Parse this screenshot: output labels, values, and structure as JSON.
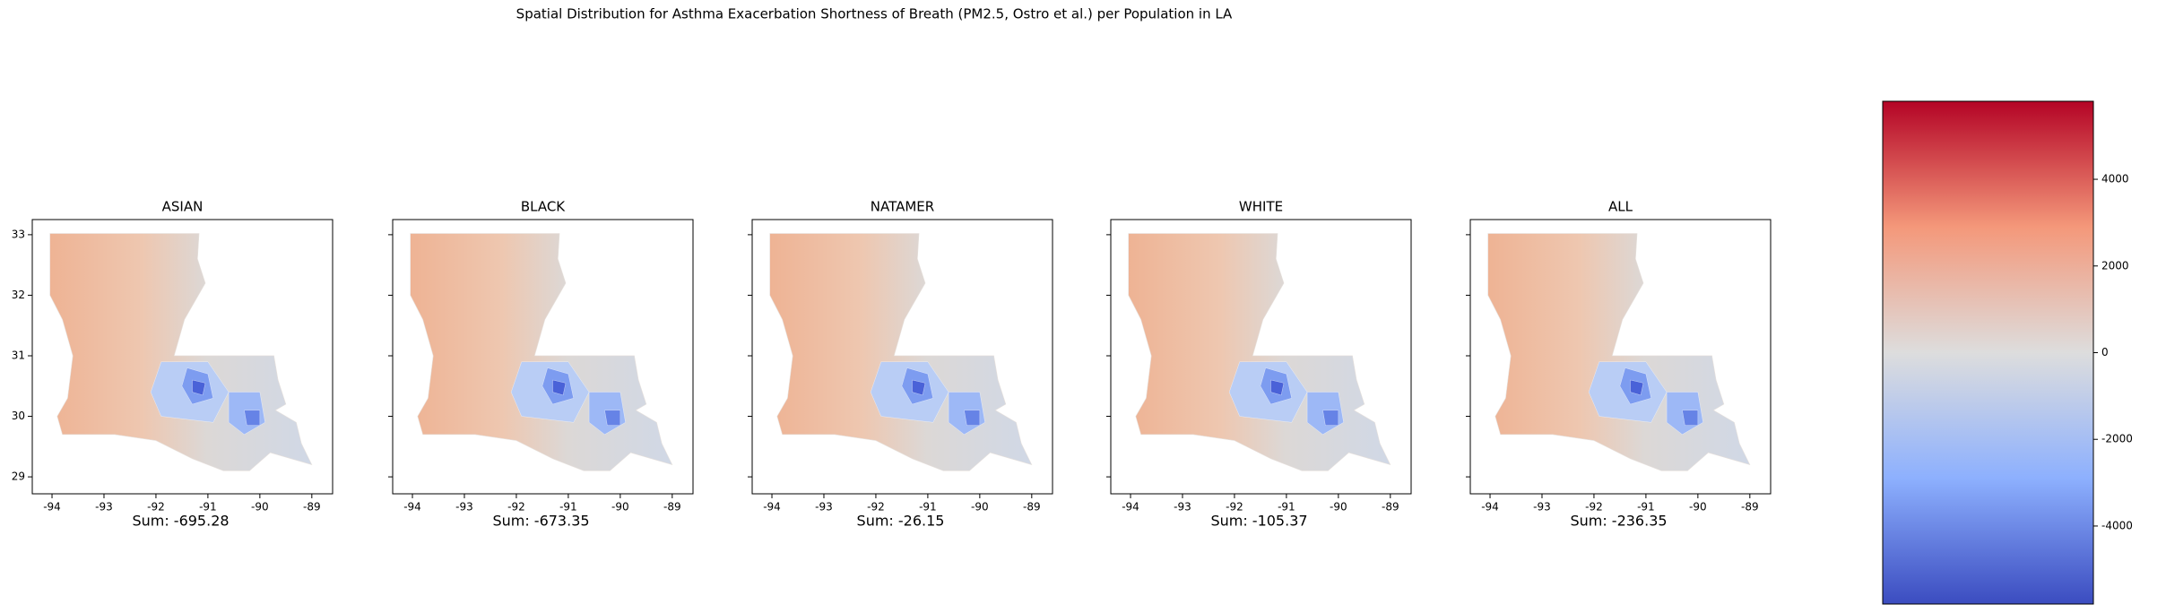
{
  "title": "Spatial Distribution for Asthma Exacerbation  Shortness of Breath (PM2.5, Ostro et al.) per Population in LA",
  "chart_data": [
    {
      "type": "map",
      "title": "ASIAN",
      "annotation": "Sum: -695.28",
      "xlim": [
        -94.38,
        -88.6
      ],
      "ylim": [
        28.72,
        33.25
      ],
      "xticks": [
        -94,
        -93,
        -92,
        -91,
        -90,
        -89
      ],
      "yticks": [
        29,
        30,
        31,
        32,
        33
      ]
    },
    {
      "type": "map",
      "title": "BLACK",
      "annotation": "Sum: -673.35",
      "xlim": [
        -94.38,
        -88.6
      ],
      "ylim": [
        28.72,
        33.25
      ],
      "xticks": [
        -94,
        -93,
        -92,
        -91,
        -90,
        -89
      ],
      "yticks": [
        29,
        30,
        31,
        32,
        33
      ]
    },
    {
      "type": "map",
      "title": "NATAMER",
      "annotation": "Sum: -26.15",
      "xlim": [
        -94.38,
        -88.6
      ],
      "ylim": [
        28.72,
        33.25
      ],
      "xticks": [
        -94,
        -93,
        -92,
        -91,
        -90,
        -89
      ],
      "yticks": [
        29,
        30,
        31,
        32,
        33
      ]
    },
    {
      "type": "map",
      "title": "WHITE",
      "annotation": "Sum: -105.37",
      "xlim": [
        -94.38,
        -88.6
      ],
      "ylim": [
        28.72,
        33.25
      ],
      "xticks": [
        -94,
        -93,
        -92,
        -91,
        -90,
        -89
      ],
      "yticks": [
        29,
        30,
        31,
        32,
        33
      ]
    },
    {
      "type": "map",
      "title": "ALL",
      "annotation": "Sum: -236.35",
      "xlim": [
        -94.38,
        -88.6
      ],
      "ylim": [
        28.72,
        33.25
      ],
      "xticks": [
        -94,
        -93,
        -92,
        -91,
        -90,
        -89
      ],
      "yticks": [
        29,
        30,
        31,
        32,
        33
      ]
    },
    {
      "type": "colorbar",
      "colormap": "coolwarm",
      "ylim": [
        -5800,
        5800
      ],
      "yticks": [
        -4000,
        -2000,
        0,
        2000,
        4000
      ]
    }
  ]
}
